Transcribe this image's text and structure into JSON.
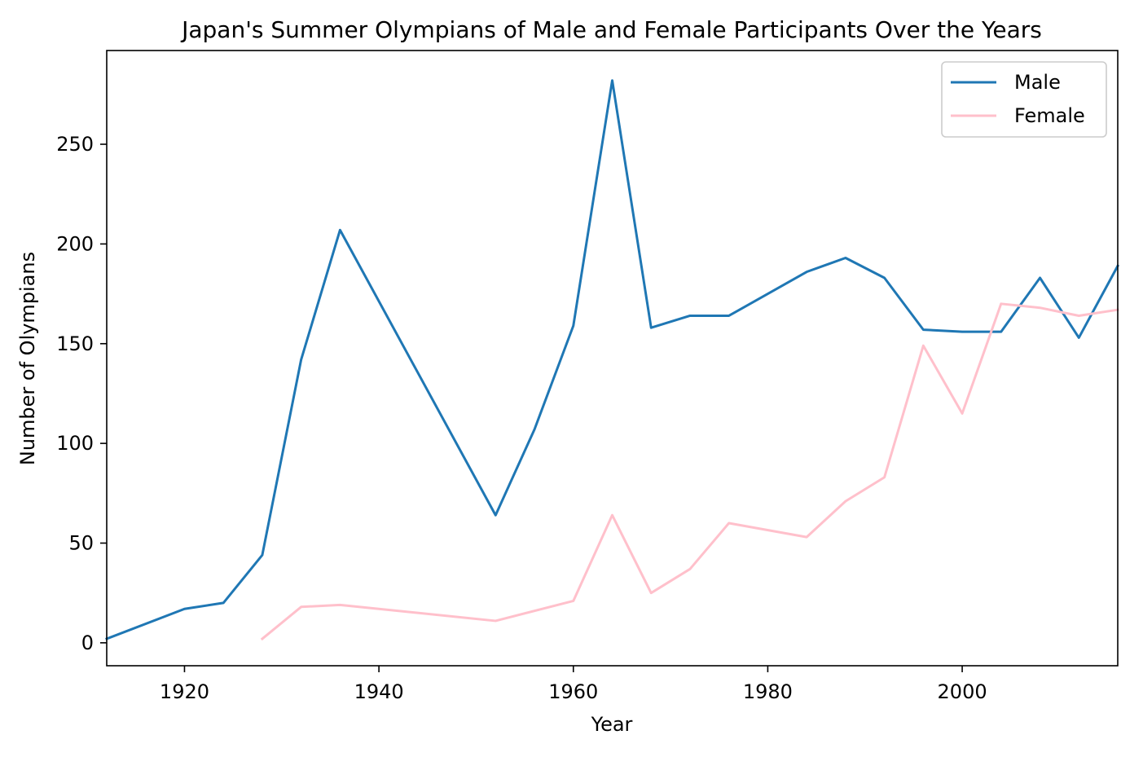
{
  "colors": {
    "male": "#1f77b4",
    "female": "#ffc0cb"
  },
  "chart_data": {
    "type": "line",
    "title": "Japan's Summer Olympians of Male and Female Participants Over the Years",
    "xlabel": "Year",
    "ylabel": "Number of Olympians",
    "xlim": [
      1912,
      2016
    ],
    "ylim": [
      -11.5,
      297
    ],
    "xticks": [
      1920,
      1940,
      1960,
      1980,
      2000
    ],
    "yticks": [
      0,
      50,
      100,
      150,
      200,
      250
    ],
    "grid": false,
    "legend_position": "top-right",
    "series": [
      {
        "name": "Male",
        "color": "#1f77b4",
        "x": [
          1912,
          1920,
          1924,
          1928,
          1932,
          1936,
          1952,
          1956,
          1960,
          1964,
          1968,
          1972,
          1976,
          1984,
          1988,
          1992,
          1996,
          2000,
          2004,
          2008,
          2012,
          2016
        ],
        "y": [
          2,
          17,
          20,
          44,
          142,
          207,
          64,
          107,
          159,
          282,
          158,
          164,
          164,
          186,
          193,
          183,
          157,
          156,
          156,
          183,
          153,
          189
        ]
      },
      {
        "name": "Female",
        "color": "#ffc0cb",
        "x": [
          1928,
          1932,
          1936,
          1952,
          1960,
          1964,
          1968,
          1972,
          1976,
          1984,
          1988,
          1992,
          1996,
          2000,
          2004,
          2008,
          2012,
          2016
        ],
        "y": [
          2,
          18,
          19,
          11,
          21,
          64,
          25,
          37,
          60,
          53,
          71,
          83,
          149,
          115,
          170,
          168,
          164,
          167
        ]
      }
    ]
  }
}
